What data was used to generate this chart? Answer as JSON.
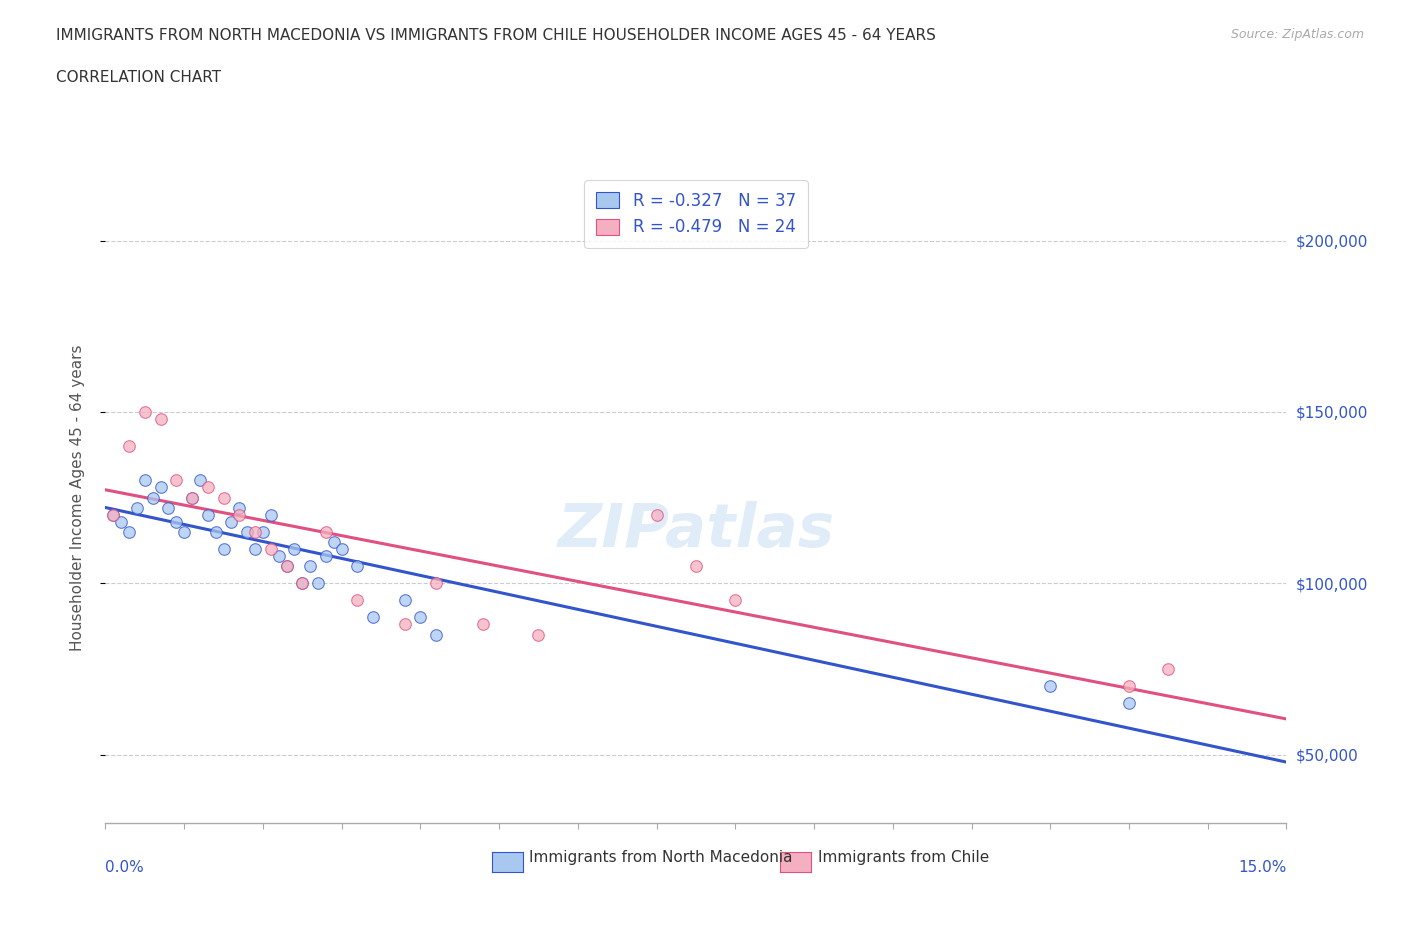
{
  "title_line1": "IMMIGRANTS FROM NORTH MACEDONIA VS IMMIGRANTS FROM CHILE HOUSEHOLDER INCOME AGES 45 - 64 YEARS",
  "title_line2": "CORRELATION CHART",
  "source_text": "Source: ZipAtlas.com",
  "ylabel": "Householder Income Ages 45 - 64 years",
  "xlim": [
    0.0,
    0.15
  ],
  "ylim": [
    30000,
    220000
  ],
  "color_mac": "#a8c8f0",
  "color_chile": "#f4b0c0",
  "line_color_mac": "#3355cc",
  "line_color_chile": "#e05080",
  "R_mac": -0.327,
  "N_mac": 37,
  "R_chile": -0.479,
  "N_chile": 24,
  "watermark": "ZIPatlas",
  "mac_x": [
    0.001,
    0.002,
    0.003,
    0.004,
    0.005,
    0.006,
    0.007,
    0.008,
    0.009,
    0.01,
    0.011,
    0.012,
    0.013,
    0.014,
    0.015,
    0.016,
    0.017,
    0.018,
    0.019,
    0.02,
    0.021,
    0.022,
    0.023,
    0.024,
    0.025,
    0.026,
    0.027,
    0.028,
    0.029,
    0.03,
    0.032,
    0.034,
    0.038,
    0.04,
    0.042,
    0.12,
    0.13
  ],
  "mac_y": [
    120000,
    118000,
    115000,
    122000,
    130000,
    125000,
    128000,
    122000,
    118000,
    115000,
    125000,
    130000,
    120000,
    115000,
    110000,
    118000,
    122000,
    115000,
    110000,
    115000,
    120000,
    108000,
    105000,
    110000,
    100000,
    105000,
    100000,
    108000,
    112000,
    110000,
    105000,
    90000,
    95000,
    90000,
    85000,
    70000,
    65000
  ],
  "chile_x": [
    0.001,
    0.003,
    0.005,
    0.007,
    0.009,
    0.011,
    0.013,
    0.015,
    0.017,
    0.019,
    0.021,
    0.023,
    0.025,
    0.028,
    0.032,
    0.038,
    0.042,
    0.048,
    0.055,
    0.07,
    0.075,
    0.08,
    0.13,
    0.135
  ],
  "chile_y": [
    120000,
    140000,
    150000,
    148000,
    130000,
    125000,
    128000,
    125000,
    120000,
    115000,
    110000,
    105000,
    100000,
    115000,
    95000,
    88000,
    100000,
    88000,
    85000,
    120000,
    105000,
    95000,
    70000,
    75000
  ],
  "ytick_values": [
    50000,
    100000,
    150000,
    200000
  ],
  "ytick_labels": [
    "$50,000",
    "$100,000",
    "$150,000",
    "$200,000"
  ],
  "xtick_minor_count": 15,
  "background_color": "#ffffff",
  "grid_color": "#cccccc",
  "legend_label_mac": "Immigrants from North Macedonia",
  "legend_label_chile": "Immigrants from Chile"
}
